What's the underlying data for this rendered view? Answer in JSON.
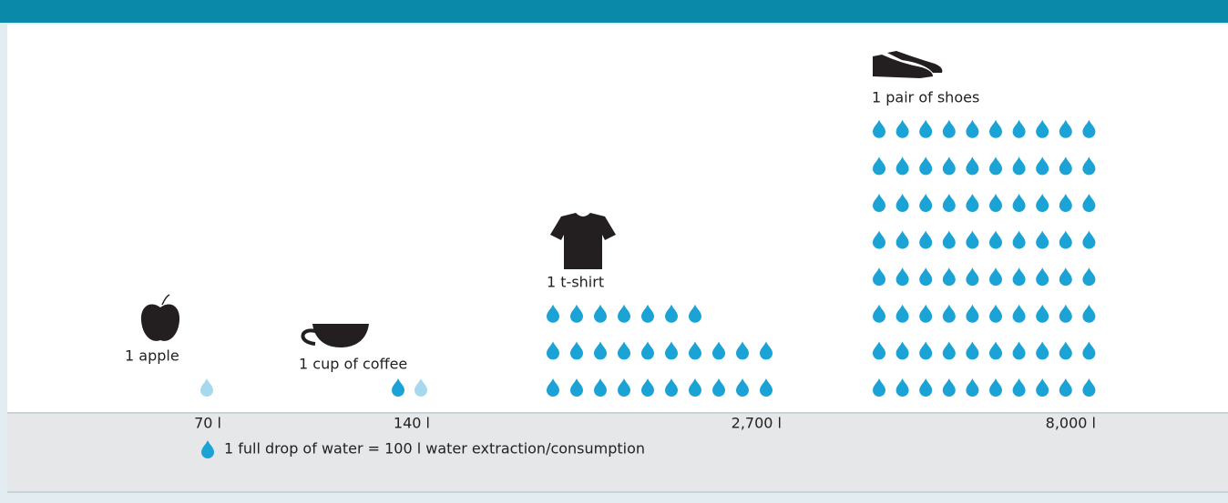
{
  "chart_data": {
    "type": "pictogram",
    "categories": [
      "1 apple",
      "1 cup of coffee",
      "1 t-shirt",
      "1 pair of shoes"
    ],
    "values": [
      70,
      140,
      2700,
      8000
    ],
    "value_labels": [
      "70 l",
      "140 l",
      "2,700 l",
      "8,000 l"
    ],
    "drop_value": 100,
    "legend": "1 full drop of water = 100 l water extraction/consumption",
    "color": "#1ba3d6"
  }
}
